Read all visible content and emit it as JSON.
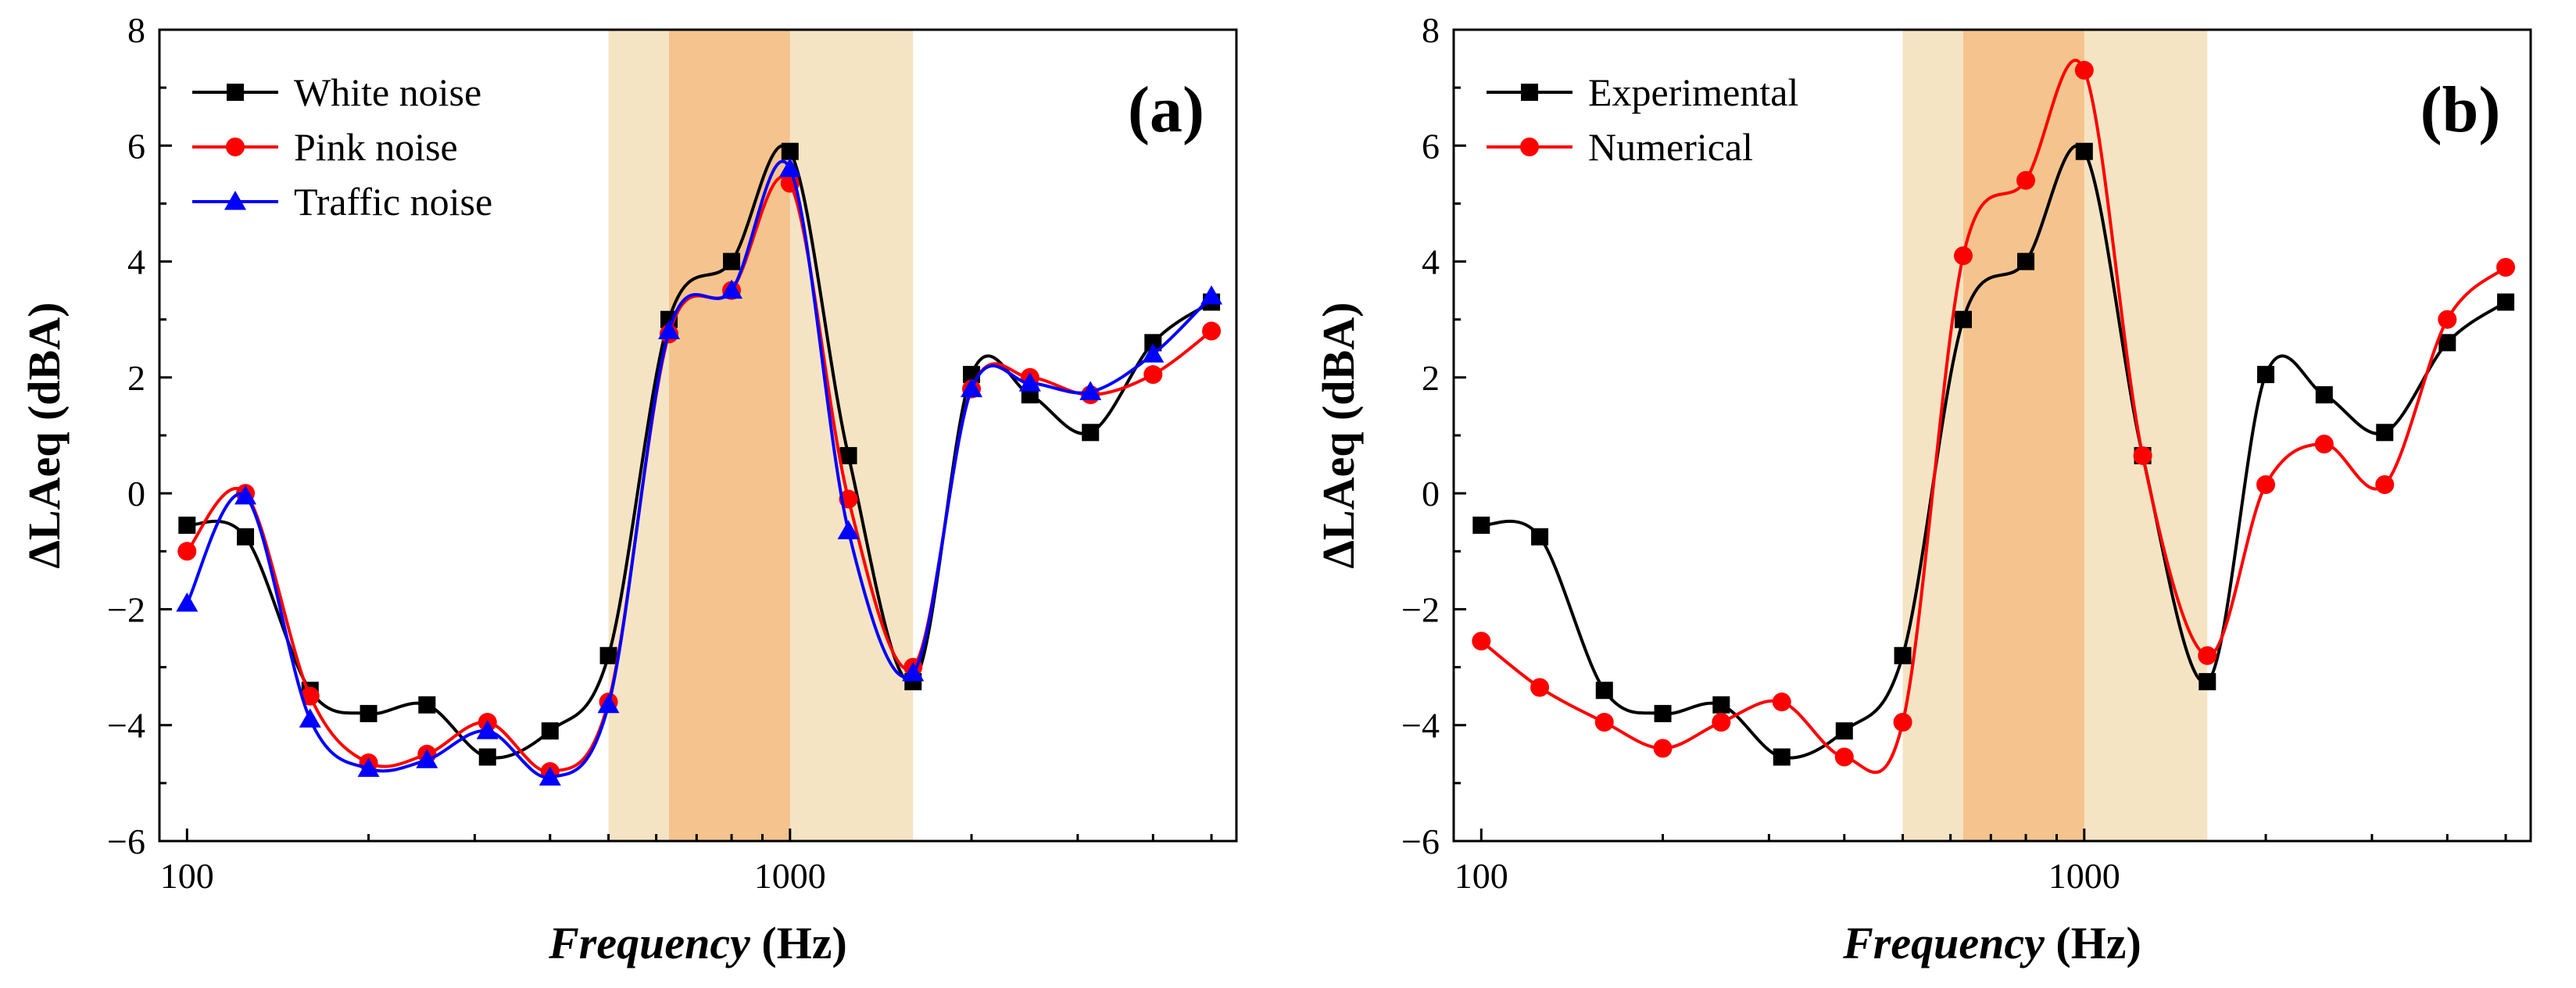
{
  "chart_data": [
    {
      "type": "line",
      "panel_label": "(a)",
      "xlabel_italic": "Frequency",
      "xlabel_unit": "(Hz)",
      "ylabel": "ΔLAeq (dBA)",
      "xscale": "log",
      "xlim": [
        90,
        5500
      ],
      "ylim": [
        -6,
        8
      ],
      "xticks": [
        100,
        1000
      ],
      "xtick_labels": [
        "100",
        "1000"
      ],
      "yticks": [
        -6,
        -4,
        -2,
        0,
        2,
        4,
        6,
        8
      ],
      "ytick_labels": [
        "−6",
        "−4",
        "−2",
        "0",
        "2",
        "4",
        "6",
        "8"
      ],
      "legend_position": "top-left",
      "shaded_bands": [
        {
          "x0": 500,
          "x1": 1600,
          "color": "#f5e4c4"
        },
        {
          "x0": 630,
          "x1": 1000,
          "color": "#f5c48e"
        }
      ],
      "x": [
        100,
        125,
        160,
        200,
        250,
        315,
        400,
        500,
        630,
        800,
        1000,
        1250,
        1600,
        2000,
        2500,
        3150,
        4000,
        5000
      ],
      "series": [
        {
          "name": "White noise",
          "color": "#000000",
          "marker": "square",
          "values": [
            -0.55,
            -0.75,
            -3.4,
            -3.8,
            -3.65,
            -4.55,
            -4.1,
            -2.8,
            3.0,
            4.0,
            5.9,
            0.65,
            -3.25,
            2.05,
            1.7,
            1.05,
            2.6,
            3.3
          ]
        },
        {
          "name": "Pink noise",
          "color": "#ff0000",
          "marker": "circle",
          "values": [
            -1.0,
            0.0,
            -3.5,
            -4.65,
            -4.5,
            -3.95,
            -4.8,
            -3.6,
            2.75,
            3.5,
            5.35,
            -0.1,
            -3.0,
            1.8,
            2.0,
            1.7,
            2.05,
            2.8
          ]
        },
        {
          "name": "Traffic noise",
          "color": "#0000ff",
          "marker": "triangle",
          "values": [
            -1.9,
            -0.05,
            -3.9,
            -4.75,
            -4.6,
            -4.1,
            -4.9,
            -3.65,
            2.8,
            3.5,
            5.6,
            -0.65,
            -3.1,
            1.8,
            1.9,
            1.75,
            2.4,
            3.4
          ]
        }
      ]
    },
    {
      "type": "line",
      "panel_label": "(b)",
      "xlabel_italic": "Frequency",
      "xlabel_unit": "(Hz)",
      "ylabel": "ΔLAeq (dBA)",
      "xscale": "log",
      "xlim": [
        90,
        5500
      ],
      "ylim": [
        -6,
        8
      ],
      "xticks": [
        100,
        1000
      ],
      "xtick_labels": [
        "100",
        "1000"
      ],
      "yticks": [
        -6,
        -4,
        -2,
        0,
        2,
        4,
        6,
        8
      ],
      "ytick_labels": [
        "−6",
        "−4",
        "−2",
        "0",
        "2",
        "4",
        "6",
        "8"
      ],
      "legend_position": "top-left",
      "shaded_bands": [
        {
          "x0": 500,
          "x1": 1600,
          "color": "#f5e4c4"
        },
        {
          "x0": 630,
          "x1": 1000,
          "color": "#f5c48e"
        }
      ],
      "x": [
        100,
        125,
        160,
        200,
        250,
        315,
        400,
        500,
        630,
        800,
        1000,
        1250,
        1600,
        2000,
        2500,
        3150,
        4000,
        5000
      ],
      "series": [
        {
          "name": "Experimental",
          "color": "#000000",
          "marker": "square",
          "values": [
            -0.55,
            -0.75,
            -3.4,
            -3.8,
            -3.65,
            -4.55,
            -4.1,
            -2.8,
            3.0,
            4.0,
            5.9,
            0.65,
            -3.25,
            2.05,
            1.7,
            1.05,
            2.6,
            3.3
          ]
        },
        {
          "name": "Numerical",
          "color": "#ff0000",
          "marker": "circle",
          "values": [
            -2.55,
            -3.35,
            -3.95,
            -4.4,
            -3.95,
            -3.6,
            -4.55,
            -3.95,
            4.1,
            5.4,
            7.3,
            0.65,
            -2.8,
            0.15,
            0.85,
            0.15,
            3.0,
            3.9
          ]
        }
      ]
    }
  ]
}
